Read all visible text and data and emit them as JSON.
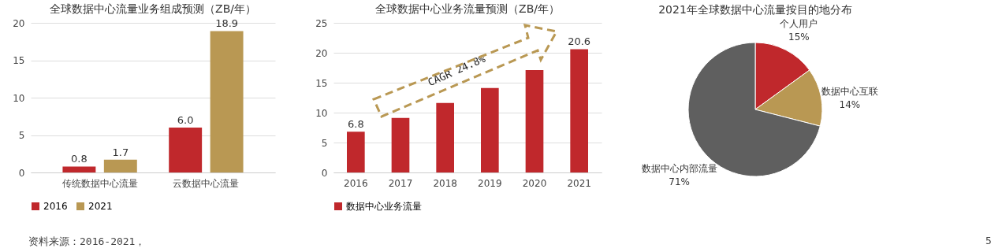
{
  "chart_data": [
    {
      "type": "bar",
      "title": "全球数据中心流量业务组成预测（ZB/年）",
      "categories": [
        "传统数据中心流量",
        "云数据中心流量"
      ],
      "series": [
        {
          "name": "2016",
          "color": "#c0282c",
          "values": [
            0.8,
            6.0
          ],
          "value_labels": [
            "0.8",
            "6.0"
          ]
        },
        {
          "name": "2021",
          "color": "#b99853",
          "values": [
            1.7,
            18.9
          ],
          "value_labels": [
            "1.7",
            "18.9"
          ]
        }
      ],
      "ylim": [
        0,
        20
      ],
      "yticks": [
        0,
        5,
        10,
        15,
        20
      ],
      "grid": "y",
      "legend": "bottom",
      "annotations": [
        "资料来源：2016-2021，"
      ]
    },
    {
      "type": "bar",
      "title": "全球数据中心业务流量预测（ZB/年）",
      "categories": [
        "2016",
        "2017",
        "2018",
        "2019",
        "2020",
        "2021"
      ],
      "series": [
        {
          "name": "数据中心业务流量",
          "color": "#c0282c",
          "values": [
            6.8,
            9.1,
            11.6,
            14.1,
            17.1,
            20.6
          ],
          "value_labels": [
            "6.8",
            null,
            null,
            null,
            null,
            "20.6"
          ]
        }
      ],
      "ylim": [
        0,
        25
      ],
      "yticks": [
        0,
        5,
        10,
        15,
        20,
        25
      ],
      "grid": "y",
      "legend": "bottom",
      "annotations": [
        "CAGR 24.8%"
      ]
    },
    {
      "type": "pie",
      "title": "2021年全球数据中心流量按目的地分布",
      "categories": [
        "个人用户",
        "数据中心互联",
        "数据中心内部流量"
      ],
      "values": [
        15,
        14,
        71
      ],
      "value_labels": [
        "15%",
        "14%",
        "71%"
      ],
      "colors": [
        "#c0282c",
        "#b99853",
        "#5f5f5f"
      ],
      "annotations": [
        "5"
      ]
    }
  ]
}
